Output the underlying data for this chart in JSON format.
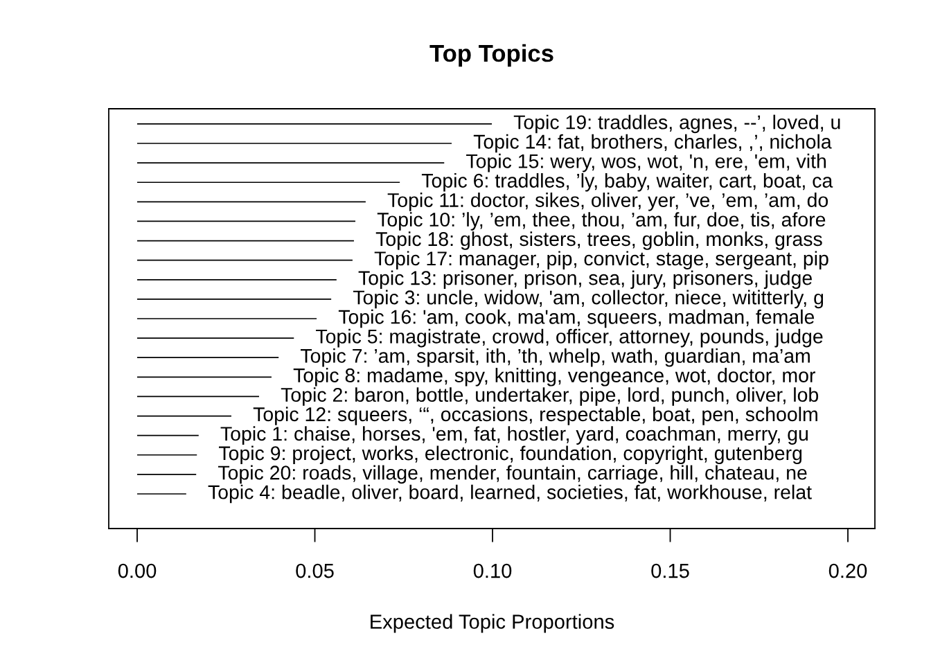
{
  "chart_data": {
    "type": "bar",
    "orientation": "horizontal",
    "title": "Top Topics",
    "xlabel": "Expected Topic Proportions",
    "categories": [
      "Topic 19: traddles, agnes, --’, loved, u",
      "Topic 14: fat, brothers, charles, ,’, nichola",
      "Topic 15: wery, wos, wot, 'n, ere, 'em, vith",
      "Topic 6: traddles, ’ly, baby, waiter, cart, boat, ca",
      "Topic 11: doctor, sikes, oliver, yer, ’ve, ’em, ’am, do",
      "Topic 10: ’ly, ’em, thee, thou, ’am, fur, doe, tis, afore",
      "Topic 18: ghost, sisters, trees, goblin, monks, grass",
      "Topic 17: manager, pip, convict, stage, sergeant, pip",
      "Topic 13: prisoner, prison, sea, jury, prisoners, judge",
      "Topic 3: uncle, widow, 'am, collector, niece, wititterly, g",
      "Topic 16: 'am, cook, ma'am, squeers, madman, female",
      "Topic 5: magistrate, crowd, officer, attorney, pounds, judge",
      "Topic 7: ’am, sparsit, ith, ’th, whelp, wath, guardian, ma’am",
      "Topic 8: madame, spy, knitting, vengeance, wot, doctor, mor",
      "Topic 2: baron, bottle, undertaker, pipe, lord, punch, oliver, lob",
      "Topic 12: squeers, ‘“, occasions, respectable, boat, pen, schoolm",
      "Topic 1: chaise, horses, 'em, fat, hostler, yard, coachman, merry, gu",
      "Topic 9: project, works, electronic, foundation, copyright, gutenberg",
      "Topic 20: roads, village, mender, fountain, carriage, hill, chateau, ne",
      "Topic 4: beadle, oliver, board, learned, societies, fat, workhouse, relat"
    ],
    "values": [
      0.0998,
      0.0885,
      0.0864,
      0.0739,
      0.0643,
      0.0614,
      0.061,
      0.0606,
      0.0561,
      0.0546,
      0.0505,
      0.0441,
      0.0398,
      0.0378,
      0.0343,
      0.0265,
      0.0173,
      0.0168,
      0.0166,
      0.0138
    ],
    "color": "#000000",
    "xlim": [
      -0.008,
      0.2076
    ],
    "xticks": [
      {
        "value": 0,
        "label": "0.00"
      },
      {
        "value": 0.05,
        "label": "0.05"
      },
      {
        "value": 0.1,
        "label": "0.10"
      },
      {
        "value": 0.15,
        "label": "0.15"
      },
      {
        "value": 0.2,
        "label": "0.20"
      }
    ],
    "tick_labels": "x",
    "grid": false
  }
}
